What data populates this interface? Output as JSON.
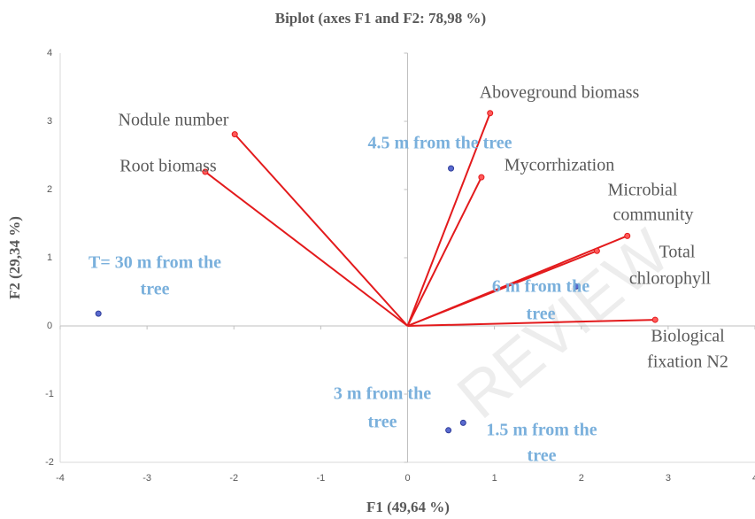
{
  "chart_data": {
    "type": "biplot",
    "title": "Biplot (axes F1 and F2: 78,98 %)",
    "x_label": "F1 (49,64 %)",
    "y_label": "F2 (29,34 %)",
    "xlim": [
      -4,
      4
    ],
    "ylim": [
      -2,
      4
    ],
    "xticks": [
      -4,
      -3,
      -2,
      -1,
      0,
      1,
      2,
      3,
      4
    ],
    "yticks": [
      -2,
      -1,
      0,
      1,
      2,
      3,
      4
    ],
    "vectors": {
      "color": "#e31a1c",
      "labels": [
        [
          "Aboveground biomass"
        ],
        [
          "Mycorrhization"
        ],
        [
          "Nodule number"
        ],
        [
          "Root biomass"
        ],
        [
          "Microbial",
          "community"
        ],
        [
          "Total",
          "chlorophyll"
        ],
        [
          "Biological",
          "fixation N2"
        ]
      ],
      "x": [
        0.95,
        0.85,
        -1.99,
        -2.33,
        2.53,
        2.18,
        2.85
      ],
      "y": [
        3.12,
        2.18,
        2.81,
        2.26,
        1.32,
        1.1,
        0.09
      ]
    },
    "points": {
      "color": "#2e3c99",
      "labels": [
        [
          "T= 30 m from the",
          "tree"
        ],
        [
          "4.5 m from the tree"
        ],
        [
          "6 m from the",
          "tree"
        ],
        [
          "3 m from the",
          "tree"
        ],
        [
          "1.5 m from the",
          "tree"
        ]
      ],
      "x": [
        -3.56,
        0.5,
        1.94,
        0.47,
        0.64
      ],
      "y": [
        0.18,
        2.31,
        0.58,
        -1.53,
        -1.42
      ]
    },
    "watermark": "REVIEW"
  }
}
